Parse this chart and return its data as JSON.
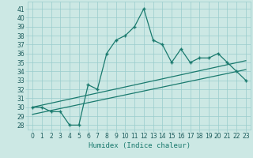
{
  "xlabel": "Humidex (Indice chaleur)",
  "x": [
    0,
    1,
    2,
    3,
    4,
    5,
    6,
    7,
    8,
    9,
    10,
    11,
    12,
    13,
    14,
    15,
    16,
    17,
    18,
    19,
    20,
    21,
    22,
    23
  ],
  "y_main": [
    30,
    30,
    29.5,
    29.5,
    28,
    28,
    32.5,
    32,
    36,
    37.5,
    38,
    39,
    41,
    37.5,
    37,
    35,
    36.5,
    35,
    35.5,
    35.5,
    36,
    35,
    34,
    33
  ],
  "trend1_x": [
    0,
    23
  ],
  "trend1_y": [
    30.0,
    35.2
  ],
  "trend2_x": [
    0,
    23
  ],
  "trend2_y": [
    29.2,
    34.2
  ],
  "ylim_min": 27.5,
  "ylim_max": 41.8,
  "yticks": [
    28,
    29,
    30,
    31,
    32,
    33,
    34,
    35,
    36,
    37,
    38,
    39,
    40,
    41
  ],
  "xticks": [
    0,
    1,
    2,
    3,
    4,
    5,
    6,
    7,
    8,
    9,
    10,
    11,
    12,
    13,
    14,
    15,
    16,
    17,
    18,
    19,
    20,
    21,
    22,
    23
  ],
  "line_color": "#1a7a6e",
  "bg_color": "#cce8e4",
  "grid_color": "#99cccc",
  "tick_label_size": 5.5,
  "xlabel_size": 6.5
}
